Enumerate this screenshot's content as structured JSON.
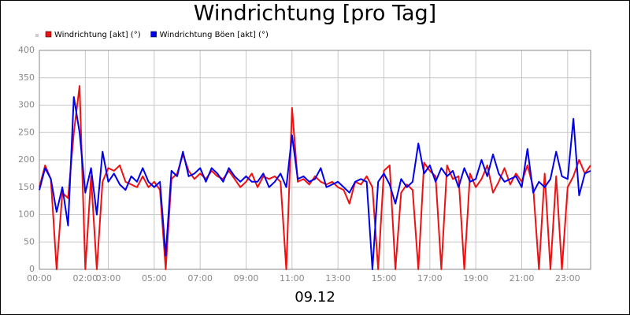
{
  "chart_data": {
    "type": "line",
    "title": "Windrichtung [pro Tag]",
    "subtitle": "09.12",
    "x": [
      0,
      0.25,
      0.5,
      0.75,
      1,
      1.25,
      1.5,
      1.75,
      2,
      2.25,
      2.5,
      2.75,
      3,
      3.25,
      3.5,
      3.75,
      4,
      4.25,
      4.5,
      4.75,
      5,
      5.25,
      5.5,
      5.75,
      6,
      6.25,
      6.5,
      6.75,
      7,
      7.25,
      7.5,
      7.75,
      8,
      8.25,
      8.5,
      8.75,
      9,
      9.25,
      9.5,
      9.75,
      10,
      10.25,
      10.5,
      10.75,
      11,
      11.25,
      11.5,
      11.75,
      12,
      12.25,
      12.5,
      12.75,
      13,
      13.25,
      13.5,
      13.75,
      14,
      14.25,
      14.5,
      14.75,
      15,
      15.25,
      15.5,
      15.75,
      16,
      16.25,
      16.5,
      16.75,
      17,
      17.25,
      17.5,
      17.75,
      18,
      18.25,
      18.5,
      18.75,
      19,
      19.25,
      19.5,
      19.75,
      20,
      20.25,
      20.5,
      20.75,
      21,
      21.25,
      21.5,
      21.75,
      22,
      22.25,
      22.5,
      22.75,
      23,
      23.25,
      23.5,
      23.75,
      24
    ],
    "series": [
      {
        "name": "Windrichtung [akt] (°)",
        "color": "#ee1111",
        "values": [
          150,
          190,
          165,
          0,
          140,
          130,
          250,
          335,
          0,
          170,
          0,
          160,
          185,
          180,
          190,
          160,
          155,
          150,
          170,
          150,
          160,
          145,
          0,
          165,
          175,
          210,
          180,
          165,
          175,
          165,
          180,
          170,
          165,
          180,
          165,
          150,
          160,
          175,
          150,
          170,
          165,
          170,
          160,
          0,
          295,
          160,
          165,
          155,
          170,
          160,
          155,
          160,
          150,
          145,
          120,
          160,
          155,
          170,
          150,
          0,
          180,
          190,
          0,
          140,
          155,
          145,
          0,
          195,
          180,
          170,
          0,
          190,
          165,
          170,
          0,
          175,
          150,
          165,
          190,
          140,
          160,
          185,
          155,
          175,
          160,
          190,
          150,
          0,
          175,
          0,
          170,
          0,
          150,
          170,
          200,
          175,
          190
        ]
      },
      {
        "name": "Windrichtung Böen [akt] (°)",
        "color": "#0000ee",
        "values": [
          145,
          185,
          165,
          105,
          150,
          80,
          315,
          250,
          140,
          185,
          100,
          215,
          160,
          175,
          155,
          145,
          170,
          160,
          185,
          160,
          150,
          160,
          25,
          180,
          170,
          215,
          170,
          175,
          185,
          160,
          185,
          175,
          160,
          185,
          170,
          160,
          170,
          160,
          160,
          175,
          150,
          160,
          175,
          150,
          245,
          165,
          170,
          160,
          165,
          185,
          150,
          155,
          160,
          150,
          140,
          160,
          165,
          160,
          0,
          160,
          175,
          155,
          120,
          165,
          150,
          160,
          230,
          175,
          190,
          160,
          185,
          170,
          180,
          150,
          185,
          160,
          165,
          200,
          170,
          210,
          175,
          160,
          165,
          170,
          150,
          220,
          140,
          160,
          150,
          165,
          215,
          170,
          165,
          275,
          135,
          175,
          180
        ]
      }
    ],
    "xlim": [
      0,
      24
    ],
    "xticks": [
      {
        "value": 0,
        "label": "00:00"
      },
      {
        "value": 2,
        "label": "02:00"
      },
      {
        "value": 3,
        "label": "03:00"
      },
      {
        "value": 5,
        "label": "05:00"
      },
      {
        "value": 7,
        "label": "07:00"
      },
      {
        "value": 9,
        "label": "09:00"
      },
      {
        "value": 11,
        "label": "11:00"
      },
      {
        "value": 13,
        "label": "13:00"
      },
      {
        "value": 15,
        "label": "15:00"
      },
      {
        "value": 17,
        "label": "17:00"
      },
      {
        "value": 19,
        "label": "19:00"
      },
      {
        "value": 21,
        "label": "21:00"
      },
      {
        "value": 23,
        "label": "23:00"
      }
    ],
    "ylim": [
      0,
      400
    ],
    "yticks": [
      0,
      50,
      100,
      150,
      200,
      250,
      300,
      350,
      400
    ],
    "grid": true
  }
}
